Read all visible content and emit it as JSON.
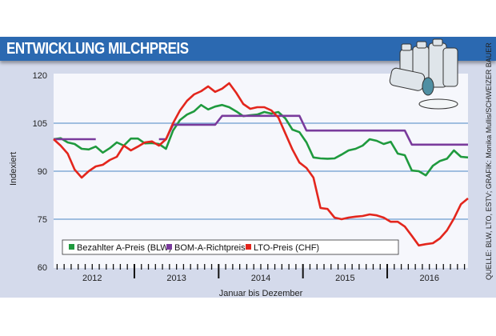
{
  "header": {
    "title": "ENTWICKLUNG MILCHPREIS"
  },
  "source": "QUELLE: BLW, LTO, ESTV; GRAFIK: Monika Mullis/SCHWEIZER BAUER",
  "illustration": "milk-cans",
  "chart_data": {
    "type": "line",
    "title": "ENTWICKLUNG MILCHPREIS",
    "xlabel": "Januar bis Dezember",
    "ylabel": "Indexiert",
    "ylim": [
      60,
      120
    ],
    "yticks": [
      60,
      75,
      90,
      105,
      120
    ],
    "xtick_labels": [
      "2012",
      "2013",
      "2014",
      "2015",
      "2016"
    ],
    "grid": "horizontal at 75, 90, 105",
    "legend": "bottom-left",
    "x": [
      "2012-01",
      "2012-02",
      "2012-03",
      "2012-04",
      "2012-05",
      "2012-06",
      "2012-07",
      "2012-08",
      "2012-09",
      "2012-10",
      "2012-11",
      "2012-12",
      "2013-01",
      "2013-02",
      "2013-03",
      "2013-04",
      "2013-05",
      "2013-06",
      "2013-07",
      "2013-08",
      "2013-09",
      "2013-10",
      "2013-11",
      "2013-12",
      "2014-01",
      "2014-02",
      "2014-03",
      "2014-04",
      "2014-05",
      "2014-06",
      "2014-07",
      "2014-08",
      "2014-09",
      "2014-10",
      "2014-11",
      "2014-12",
      "2015-01",
      "2015-02",
      "2015-03",
      "2015-04",
      "2015-05",
      "2015-06",
      "2015-07",
      "2015-08",
      "2015-09",
      "2015-10",
      "2015-11",
      "2015-12",
      "2016-01",
      "2016-02",
      "2016-03",
      "2016-04",
      "2016-05",
      "2016-06",
      "2016-07",
      "2016-08",
      "2016-09",
      "2016-10",
      "2016-11",
      "2016-12"
    ],
    "series": [
      {
        "name": "Bezahlter A-Preis (BLW)",
        "color": "#1f9a3e",
        "values": [
          100,
          100.3,
          99,
          98.5,
          97,
          96.8,
          97.7,
          95.8,
          97.2,
          99,
          98,
          100.2,
          100.2,
          98.7,
          98.8,
          98.5,
          97,
          102.7,
          106,
          107.7,
          108.7,
          110.7,
          109.3,
          110.2,
          110.7,
          110,
          108.7,
          107.2,
          107.5,
          107.7,
          108.5,
          108,
          108.5,
          106.5,
          103,
          102.2,
          99,
          94.3,
          94,
          93.9,
          94,
          95.2,
          96.5,
          97,
          98,
          100,
          99.5,
          98.5,
          99.2,
          95.5,
          95,
          90.2,
          90,
          88.7,
          91.7,
          93.2,
          93.9,
          96.5,
          94.5,
          94.3
        ]
      },
      {
        "name": "BOM-A-Richtpreis",
        "color": "#7a3b9c",
        "values": [
          100,
          100,
          100,
          100,
          100,
          100,
          100,
          null,
          null,
          null,
          null,
          null,
          null,
          null,
          null,
          100,
          100,
          104.5,
          104.5,
          104.5,
          104.5,
          104.5,
          104.5,
          104.5,
          107.3,
          107.3,
          107.3,
          107.3,
          107.3,
          107.3,
          107.3,
          107.3,
          107.3,
          107.3,
          107.3,
          107.3,
          102.7,
          102.7,
          102.7,
          102.7,
          102.7,
          102.7,
          102.7,
          102.7,
          102.7,
          102.7,
          102.7,
          102.7,
          102.7,
          102.7,
          102.7,
          98.3,
          98.3,
          98.3,
          98.3,
          98.3,
          98.3,
          98.3,
          98.3,
          98.3
        ]
      },
      {
        "name": "LTO-Preis (CHF)",
        "color": "#e3261d",
        "values": [
          100,
          98,
          95.5,
          90.5,
          88,
          90,
          91.5,
          92,
          93.5,
          94.5,
          98,
          96.5,
          97.7,
          99,
          99.3,
          98,
          100,
          105,
          109,
          112,
          114,
          115,
          116.5,
          114.8,
          115.8,
          117.5,
          114.5,
          111,
          109.5,
          110,
          110,
          109,
          106.8,
          101.8,
          96.8,
          92.7,
          91,
          88,
          78.5,
          78.2,
          75.5,
          75,
          75.5,
          75.8,
          76,
          76.5,
          76.2,
          75.5,
          74.2,
          74.2,
          72.7,
          69.8,
          66.8,
          67.2,
          67.5,
          69,
          71.5,
          75.2,
          79.7,
          81.5
        ]
      }
    ]
  }
}
